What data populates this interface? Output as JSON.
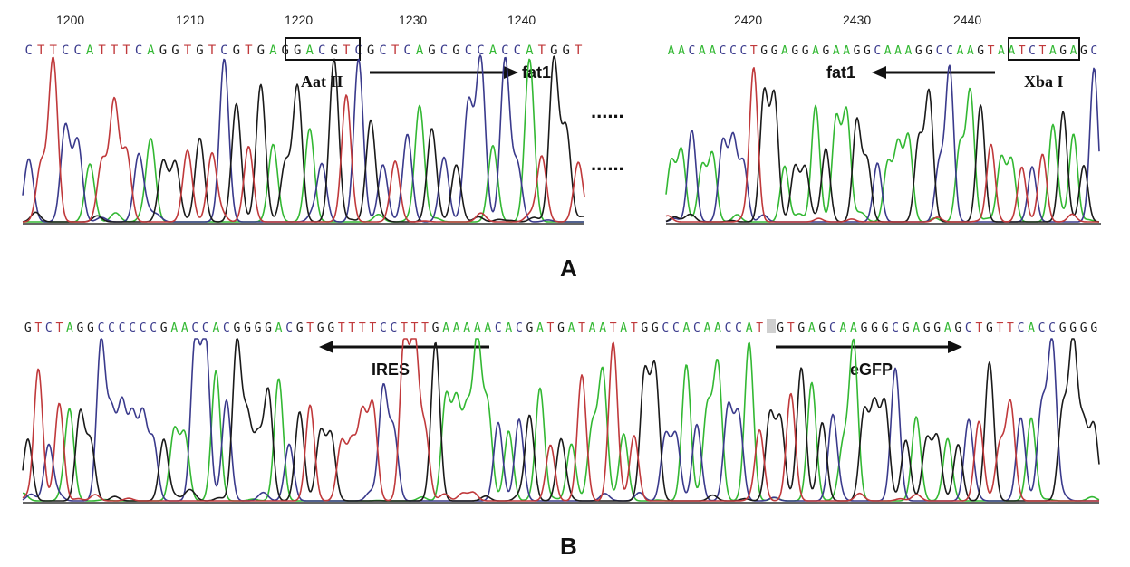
{
  "colors": {
    "A": "#33b833",
    "C": "#3a3a8c",
    "G": "#1a1a1a",
    "T": "#c0393b",
    "baseline": "#333333"
  },
  "panels": {
    "A": {
      "letter": "A",
      "left": {
        "positions": [
          "1200",
          "1210",
          "1220",
          "1230",
          "1240"
        ],
        "sequence": "CTTCCATTTCAGGTGTCGTGAGGACGTCGCTCAGCGCCACCATGGT",
        "site_label": "Aat II",
        "gene_label": "fat1"
      },
      "separator": "......",
      "right": {
        "positions": [
          "2420",
          "2430",
          "2440"
        ],
        "sequence": "AACAACCCTGGAGGAGAAGGCAAAGGCCAAGTAATCTAGAGC",
        "site_label": "Xba I",
        "gene_label": "fat1"
      }
    },
    "B": {
      "letter": "B",
      "sequence": "GTCTAGGCCCCCCGAACCACGGGGACGTGGTTTTCCTTTGAAAAACACGATGATAATATGGCCACAACCATGGTGAGCAAGGGCGAGGAGCTGTTCACCGGGG",
      "labels": {
        "ires": "IRES",
        "egfp": "eGFP"
      }
    }
  }
}
